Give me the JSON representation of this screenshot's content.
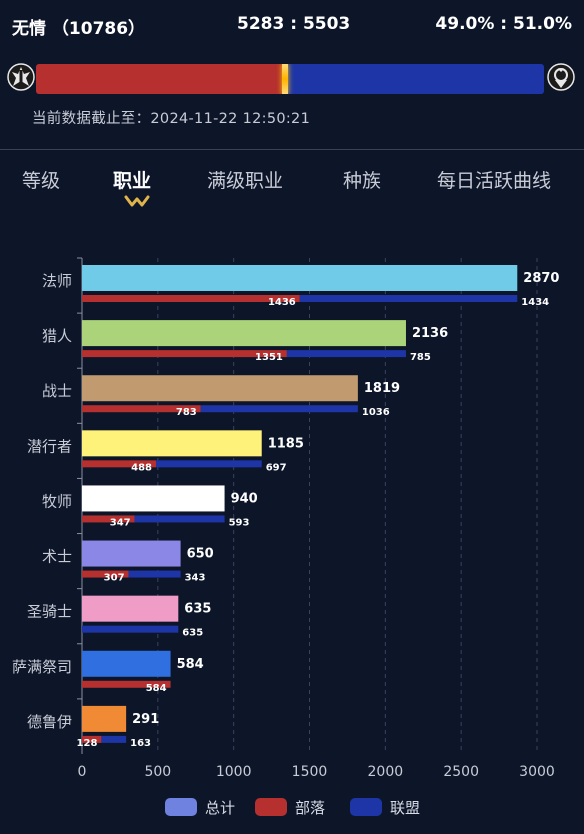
{
  "header": {
    "server_name": "无情 （10786）",
    "ratio_count": "5283 : 5503",
    "ratio_percent": "49.0% : 51.0%",
    "horde_share": 0.49,
    "updated_label": "当前数据截止至：",
    "updated_time": "2024-11-22 12:50:21"
  },
  "tabs": [
    {
      "label": "等级",
      "active": false
    },
    {
      "label": "职业",
      "active": true
    },
    {
      "label": "满级职业",
      "active": false
    },
    {
      "label": "种族",
      "active": false
    },
    {
      "label": "每日活跃曲线",
      "active": false
    }
  ],
  "colors": {
    "horde": "#b5302e",
    "alliance": "#1d35a6",
    "background": "#0d1528",
    "grid": "#3a4260"
  },
  "icons": {
    "horde": "horde-emblem-icon",
    "alliance": "alliance-emblem-icon",
    "tab_indicator": "wave-indicator-icon"
  },
  "chart_data": {
    "type": "bar",
    "orientation": "horizontal",
    "categories": [
      "法师",
      "猎人",
      "战士",
      "潜行者",
      "牧师",
      "术士",
      "圣骑士",
      "萨满祭司",
      "德鲁伊"
    ],
    "class_colors": [
      "#6fcbe8",
      "#abd37a",
      "#c19a70",
      "#fff27a",
      "#ffffff",
      "#8a87e6",
      "#ef9cc7",
      "#2f6fe0",
      "#f08a35"
    ],
    "series": [
      {
        "name": "总计",
        "color": "#6f82e0",
        "values": [
          2870,
          2136,
          1819,
          1185,
          940,
          650,
          635,
          584,
          291
        ]
      },
      {
        "name": "部落",
        "color": "#b5302e",
        "values": [
          1436,
          1351,
          783,
          488,
          347,
          307,
          0,
          584,
          128
        ]
      },
      {
        "name": "联盟",
        "color": "#1d35a6",
        "values": [
          1434,
          785,
          1036,
          697,
          593,
          343,
          635,
          0,
          163
        ]
      }
    ],
    "xlim": [
      0,
      3000
    ],
    "xticks": [
      0,
      500,
      1000,
      1500,
      2000,
      2500,
      3000
    ],
    "legend": "bottom",
    "grid": true
  }
}
